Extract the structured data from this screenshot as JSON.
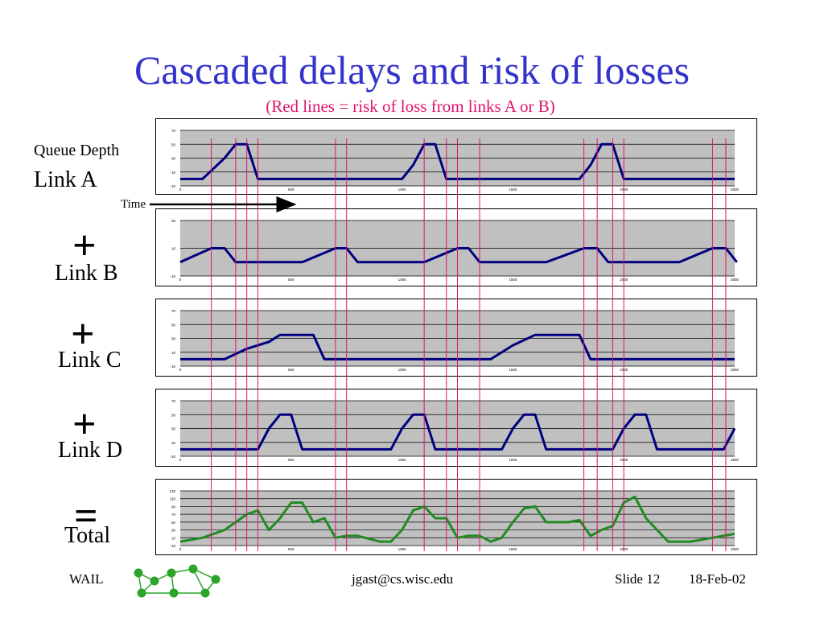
{
  "title": "Cascaded delays and risk of losses",
  "subtitle": "(Red lines = risk of loss from links A or B)",
  "labels": {
    "queue_depth": "Queue Depth",
    "link_a": "Link A",
    "time": "Time",
    "link_b": "Link B",
    "link_c": "Link C",
    "link_d": "Link D",
    "total": "Total",
    "plus": "+",
    "equals": "="
  },
  "footer": {
    "left": "WAIL",
    "center": "jgast@cs.wisc.edu",
    "slide": "Slide 12",
    "date": "18-Feb-02"
  },
  "colors": {
    "title": "#3333cc",
    "subtitle": "#e0136c",
    "series_link": "#000080",
    "series_total": "#228b22",
    "risk_lines": "#e0136c",
    "plot_bg": "#c0c0c0"
  },
  "chart_data": [
    {
      "name": "Link A",
      "type": "line",
      "ylim": [
        -10,
        70
      ],
      "yticks": [
        -10,
        10,
        30,
        50,
        70
      ],
      "xlim": [
        0,
        2500
      ],
      "xticks": [
        0,
        500,
        1000,
        1500,
        2000,
        2500
      ],
      "x": [
        0,
        100,
        200,
        250,
        300,
        350,
        1000,
        1050,
        1100,
        1150,
        1200,
        1800,
        1850,
        1900,
        1950,
        2000,
        2500
      ],
      "y": [
        0,
        0,
        30,
        50,
        50,
        0,
        0,
        20,
        50,
        50,
        0,
        0,
        20,
        50,
        50,
        0,
        0
      ]
    },
    {
      "name": "Link B",
      "type": "line",
      "ylim": [
        -10,
        30
      ],
      "yticks": [
        -10,
        10,
        30
      ],
      "xlim": [
        0,
        2500
      ],
      "xticks": [
        0,
        500,
        1000,
        1500,
        2000,
        2500
      ],
      "x": [
        0,
        140,
        200,
        250,
        550,
        700,
        750,
        800,
        1100,
        1250,
        1300,
        1350,
        1650,
        1820,
        1880,
        1930,
        2250,
        2400,
        2460,
        2510
      ],
      "y": [
        0,
        10,
        10,
        0,
        0,
        10,
        10,
        0,
        0,
        10,
        10,
        0,
        0,
        10,
        10,
        0,
        0,
        10,
        10,
        0
      ]
    },
    {
      "name": "Link C",
      "type": "line",
      "ylim": [
        -10,
        70
      ],
      "yticks": [
        -10,
        10,
        30,
        50,
        70
      ],
      "xlim": [
        0,
        2500
      ],
      "xticks": [
        0,
        500,
        1000,
        1500,
        2000,
        2500
      ],
      "x": [
        0,
        200,
        300,
        400,
        450,
        600,
        650,
        1400,
        1500,
        1600,
        1700,
        1800,
        1850,
        2500
      ],
      "y": [
        0,
        0,
        15,
        25,
        35,
        35,
        0,
        0,
        20,
        35,
        35,
        35,
        0,
        0
      ]
    },
    {
      "name": "Link D",
      "type": "line",
      "ylim": [
        -10,
        70
      ],
      "yticks": [
        -10,
        10,
        30,
        50,
        70
      ],
      "xlim": [
        0,
        2500
      ],
      "xticks": [
        0,
        500,
        1000,
        1500,
        2000,
        2500
      ],
      "x": [
        0,
        350,
        400,
        450,
        500,
        550,
        950,
        1000,
        1050,
        1100,
        1150,
        1450,
        1500,
        1550,
        1600,
        1650,
        1950,
        2000,
        2050,
        2100,
        2150,
        2450,
        2500
      ],
      "y": [
        0,
        0,
        30,
        50,
        50,
        0,
        0,
        30,
        50,
        50,
        0,
        0,
        30,
        50,
        50,
        0,
        0,
        30,
        50,
        50,
        0,
        0,
        30
      ]
    },
    {
      "name": "Total",
      "type": "line",
      "ylim": [
        -10,
        130
      ],
      "yticks": [
        -10,
        10,
        30,
        50,
        70,
        90,
        110,
        130
      ],
      "xlim": [
        0,
        2500
      ],
      "xticks": [
        0,
        500,
        1000,
        1500,
        2000,
        2500
      ],
      "x": [
        0,
        100,
        200,
        250,
        300,
        350,
        400,
        450,
        500,
        550,
        600,
        650,
        700,
        750,
        800,
        900,
        950,
        1000,
        1050,
        1100,
        1150,
        1200,
        1250,
        1300,
        1350,
        1400,
        1450,
        1500,
        1550,
        1600,
        1650,
        1700,
        1750,
        1800,
        1850,
        1900,
        1950,
        2000,
        2050,
        2100,
        2200,
        2300,
        2400,
        2500
      ],
      "y": [
        0,
        10,
        30,
        50,
        70,
        80,
        30,
        60,
        100,
        100,
        50,
        60,
        10,
        15,
        15,
        0,
        0,
        30,
        80,
        90,
        60,
        60,
        10,
        15,
        15,
        0,
        10,
        50,
        85,
        90,
        50,
        50,
        50,
        55,
        15,
        30,
        40,
        100,
        115,
        60,
        0,
        0,
        10,
        20
      ]
    }
  ],
  "risk_line_times": [
    140,
    250,
    300,
    350,
    700,
    750,
    1100,
    1200,
    1250,
    1350,
    1820,
    1880,
    1950,
    2000,
    2400,
    2460
  ]
}
